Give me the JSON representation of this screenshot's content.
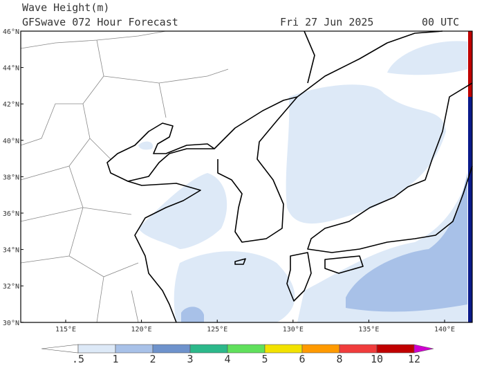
{
  "header": {
    "title": "Wave Height(m)",
    "subtitle": "GFSwave 072 Hour Forecast",
    "date": "Fri 27 Jun 2025",
    "time": "00 UTC"
  },
  "map": {
    "lat_labels": [
      "46°N",
      "44°N",
      "42°N",
      "40°N",
      "38°N",
      "36°N",
      "34°N",
      "32°N",
      "30°N"
    ],
    "lon_labels": [
      "115°E",
      "120°E",
      "125°E",
      "130°E",
      "135°E",
      "140°E"
    ]
  },
  "colorbar": {
    "labels": [
      ".5",
      "1",
      "2",
      "3",
      "4",
      "5",
      "6",
      "8",
      "10",
      "12"
    ],
    "colors": [
      "#ffffff",
      "#dde9f7",
      "#a8c1e8",
      "#6e92cc",
      "#2cb88a",
      "#60e05c",
      "#f2e200",
      "#ff9a00",
      "#f03c3c",
      "#c00000",
      "#d000d0"
    ]
  }
}
